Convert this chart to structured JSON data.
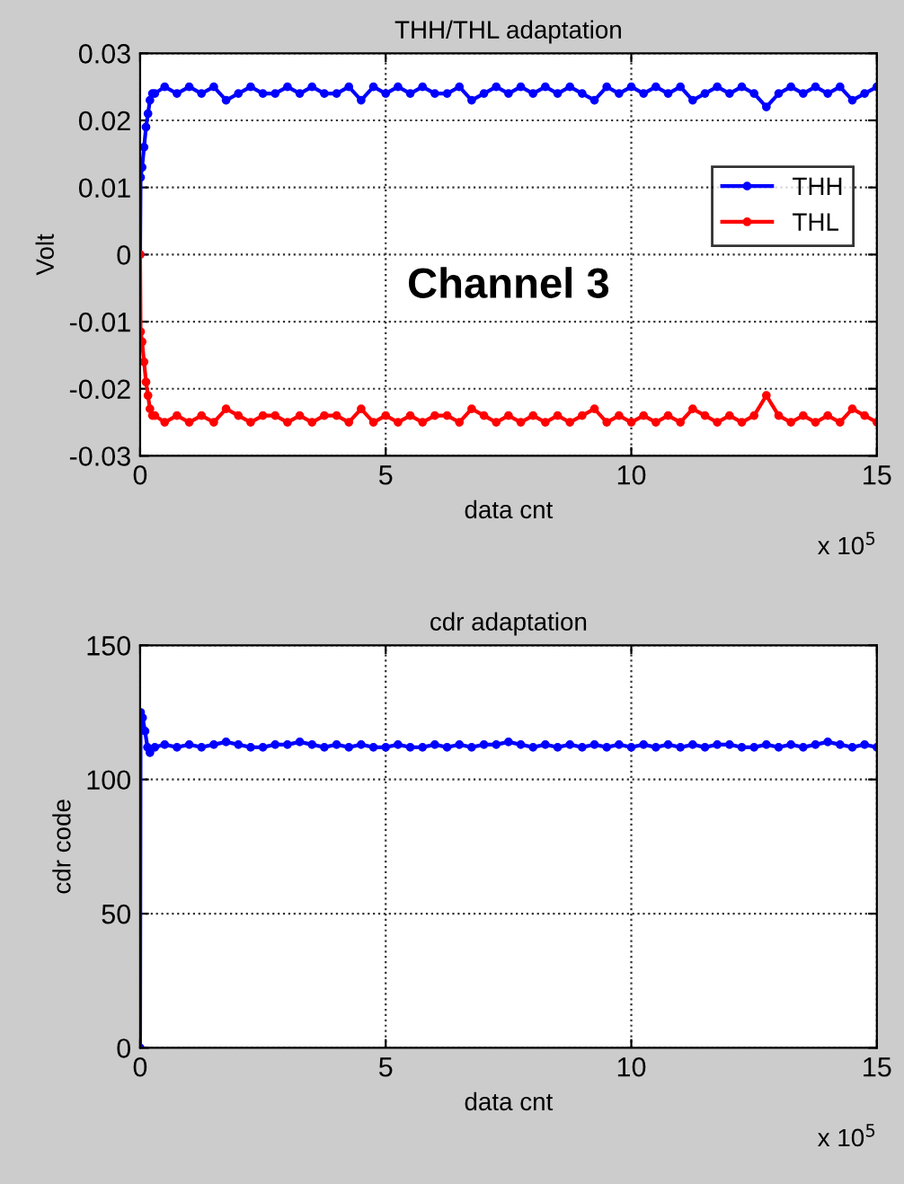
{
  "chart_data": [
    {
      "type": "line",
      "title": "THH/THL adaptation",
      "xlabel": "data cnt",
      "ylabel": "Volt",
      "annotations": [
        "x 10$^{5}$",
        "Channel 3"
      ],
      "xlim": [
        0,
        15
      ],
      "xticks": [
        0,
        5,
        10,
        15
      ],
      "ylim": [
        -0.03,
        0.03
      ],
      "yticks": [
        -0.03,
        -0.02,
        -0.01,
        0,
        0.01,
        0.02,
        0.03
      ],
      "grid": true,
      "legend": "right",
      "marker": "circle",
      "line_style": "solid",
      "series": [
        {
          "name": "THH",
          "color": "#0000ff",
          "x": [
            0,
            0.01,
            0.04,
            0.08,
            0.12,
            0.16,
            0.2,
            0.25,
            0.3,
            0.5,
            0.75,
            1,
            1.25,
            1.5,
            1.75,
            2,
            2.25,
            2.5,
            2.75,
            3,
            3.25,
            3.5,
            3.75,
            4,
            4.25,
            4.5,
            4.75,
            5,
            5.25,
            5.5,
            5.75,
            6,
            6.25,
            6.5,
            6.75,
            7,
            7.25,
            7.5,
            7.75,
            8,
            8.25,
            8.5,
            8.75,
            9,
            9.25,
            9.5,
            9.75,
            10,
            10.25,
            10.5,
            10.75,
            11,
            11.25,
            11.5,
            11.75,
            12,
            12.25,
            12.5,
            12.75,
            13,
            13.25,
            13.5,
            13.75,
            14,
            14.25,
            14.5,
            14.75,
            15
          ],
          "values": [
            0,
            0.0115,
            0.013,
            0.016,
            0.019,
            0.021,
            0.023,
            0.024,
            0.024,
            0.025,
            0.024,
            0.025,
            0.024,
            0.025,
            0.023,
            0.024,
            0.025,
            0.024,
            0.024,
            0.025,
            0.024,
            0.025,
            0.024,
            0.024,
            0.025,
            0.023,
            0.025,
            0.024,
            0.025,
            0.024,
            0.025,
            0.024,
            0.024,
            0.025,
            0.023,
            0.024,
            0.025,
            0.024,
            0.025,
            0.024,
            0.025,
            0.024,
            0.025,
            0.024,
            0.023,
            0.025,
            0.024,
            0.025,
            0.024,
            0.025,
            0.024,
            0.025,
            0.023,
            0.024,
            0.025,
            0.024,
            0.025,
            0.024,
            0.022,
            0.024,
            0.025,
            0.024,
            0.025,
            0.024,
            0.025,
            0.023,
            0.024,
            0.025
          ]
        },
        {
          "name": "THL",
          "color": "#ff0000",
          "x": [
            0,
            0.01,
            0.04,
            0.08,
            0.12,
            0.16,
            0.2,
            0.25,
            0.3,
            0.5,
            0.75,
            1,
            1.25,
            1.5,
            1.75,
            2,
            2.25,
            2.5,
            2.75,
            3,
            3.25,
            3.5,
            3.75,
            4,
            4.25,
            4.5,
            4.75,
            5,
            5.25,
            5.5,
            5.75,
            6,
            6.25,
            6.5,
            6.75,
            7,
            7.25,
            7.5,
            7.75,
            8,
            8.25,
            8.5,
            8.75,
            9,
            9.25,
            9.5,
            9.75,
            10,
            10.25,
            10.5,
            10.75,
            11,
            11.25,
            11.5,
            11.75,
            12,
            12.25,
            12.5,
            12.75,
            13,
            13.25,
            13.5,
            13.75,
            14,
            14.25,
            14.5,
            14.75,
            15
          ],
          "values": [
            0,
            -0.0115,
            -0.013,
            -0.016,
            -0.019,
            -0.021,
            -0.023,
            -0.024,
            -0.024,
            -0.025,
            -0.024,
            -0.025,
            -0.024,
            -0.025,
            -0.023,
            -0.024,
            -0.025,
            -0.024,
            -0.024,
            -0.025,
            -0.024,
            -0.025,
            -0.024,
            -0.024,
            -0.025,
            -0.023,
            -0.025,
            -0.024,
            -0.025,
            -0.024,
            -0.025,
            -0.024,
            -0.024,
            -0.025,
            -0.023,
            -0.024,
            -0.025,
            -0.024,
            -0.025,
            -0.024,
            -0.025,
            -0.024,
            -0.025,
            -0.024,
            -0.023,
            -0.025,
            -0.024,
            -0.025,
            -0.024,
            -0.025,
            -0.024,
            -0.025,
            -0.023,
            -0.024,
            -0.025,
            -0.024,
            -0.025,
            -0.024,
            -0.021,
            -0.024,
            -0.025,
            -0.024,
            -0.025,
            -0.024,
            -0.025,
            -0.023,
            -0.024,
            -0.025
          ]
        }
      ]
    },
    {
      "type": "line",
      "title": "cdr adaptation",
      "xlabel": "data cnt",
      "ylabel": "cdr code",
      "annotations": [
        "x 10$^{5}$"
      ],
      "xlim": [
        0,
        15
      ],
      "xticks": [
        0,
        5,
        10,
        15
      ],
      "ylim": [
        0,
        150
      ],
      "yticks": [
        0,
        50,
        100,
        150
      ],
      "grid": true,
      "marker": "circle",
      "line_style": "solid",
      "series": [
        {
          "color": "#0000ff",
          "x": [
            0,
            0.01,
            0.05,
            0.1,
            0.15,
            0.2,
            0.3,
            0.5,
            0.75,
            1,
            1.25,
            1.5,
            1.75,
            2,
            2.25,
            2.5,
            2.75,
            3,
            3.25,
            3.5,
            3.75,
            4,
            4.25,
            4.5,
            4.75,
            5,
            5.25,
            5.5,
            5.75,
            6,
            6.25,
            6.5,
            6.75,
            7,
            7.25,
            7.5,
            7.75,
            8,
            8.25,
            8.5,
            8.75,
            9,
            9.25,
            9.5,
            9.75,
            10,
            10.25,
            10.5,
            10.75,
            11,
            11.25,
            11.5,
            11.75,
            12,
            12.25,
            12.5,
            12.75,
            13,
            13.25,
            13.5,
            13.75,
            14,
            14.25,
            14.5,
            14.75,
            15
          ],
          "values": [
            0,
            125,
            123,
            118,
            112,
            110,
            112,
            113,
            112,
            113,
            112,
            113,
            114,
            113,
            112,
            112,
            113,
            113,
            114,
            113,
            112,
            113,
            112,
            113,
            112,
            112,
            113,
            112,
            112,
            113,
            112,
            113,
            112,
            113,
            113,
            114,
            113,
            112,
            113,
            112,
            113,
            112,
            113,
            112,
            113,
            112,
            113,
            112,
            113,
            112,
            113,
            112,
            113,
            113,
            112,
            112,
            113,
            112,
            113,
            112,
            113,
            114,
            113,
            112,
            113,
            112
          ]
        }
      ]
    }
  ]
}
